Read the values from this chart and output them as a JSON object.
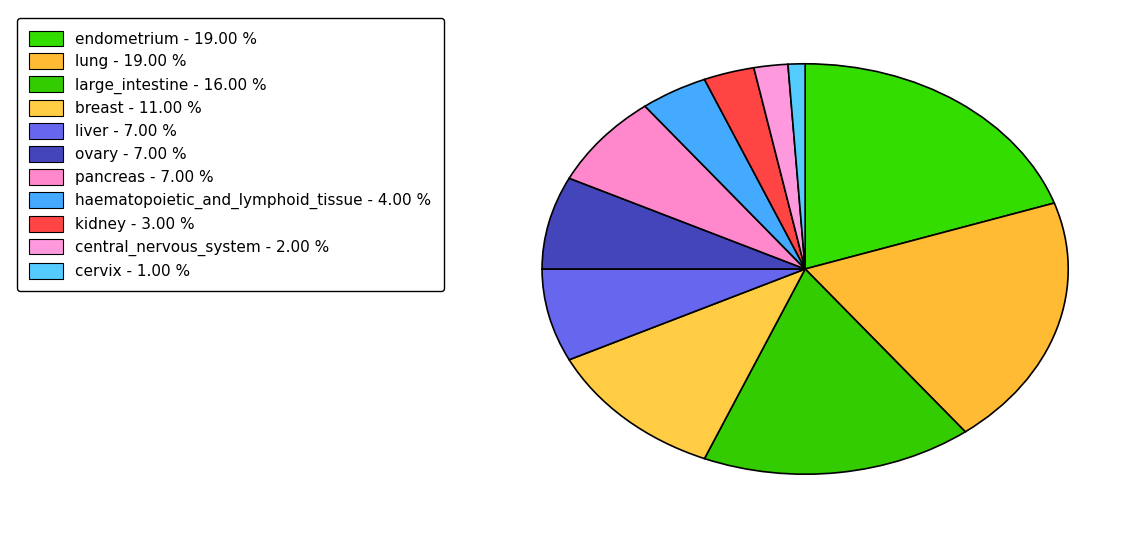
{
  "labels": [
    "endometrium",
    "lung",
    "large_intestine",
    "breast",
    "liver",
    "ovary",
    "pancreas",
    "haematopoietic_and_lymphoid_tissue",
    "kidney",
    "central_nervous_system",
    "cervix"
  ],
  "values": [
    19,
    19,
    16,
    11,
    7,
    7,
    7,
    4,
    3,
    2,
    1
  ],
  "colors": [
    "#33dd00",
    "#ffbb33",
    "#33cc00",
    "#ffcc44",
    "#6666ee",
    "#4444bb",
    "#ff88cc",
    "#44aaff",
    "#ff4444",
    "#ff99dd",
    "#55ccff"
  ],
  "legend_labels": [
    "endometrium - 19.00 %",
    "lung - 19.00 %",
    "large_intestine - 16.00 %",
    "breast - 11.00 %",
    "liver - 7.00 %",
    "ovary - 7.00 %",
    "pancreas - 7.00 %",
    "haematopoietic_and_lymphoid_tissue - 4.00 %",
    "kidney - 3.00 %",
    "central_nervous_system - 2.00 %",
    "cervix - 1.00 %"
  ],
  "startangle": 90,
  "figsize": [
    11.34,
    5.38
  ],
  "dpi": 100
}
